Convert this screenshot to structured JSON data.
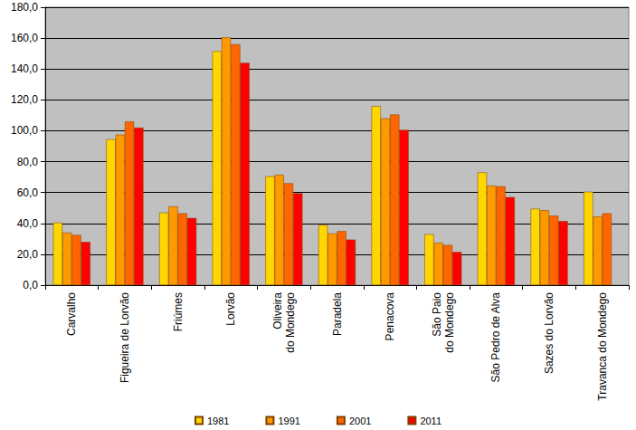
{
  "chart_data": {
    "type": "bar",
    "categories": [
      "Carvalho",
      "Figueira de Lorvão",
      "Friúmes",
      "Lorvão",
      "Oliveira\ndo Mondego",
      "Paradela",
      "Penacova",
      "São Paio\ndo Mondego",
      "São Pedro de Alva",
      "Sazes do Lorvão",
      "Travanca do Mondego"
    ],
    "series": [
      {
        "name": "1981",
        "color": "#ffd700",
        "values": [
          40.5,
          94.5,
          47,
          151.5,
          70.5,
          39,
          116,
          33,
          73,
          49.5,
          60.5
        ]
      },
      {
        "name": "1991",
        "color": "#ff9900",
        "values": [
          34,
          97.5,
          51,
          160.5,
          71.5,
          33.5,
          108,
          27.5,
          64.5,
          48.5,
          44.5
        ]
      },
      {
        "name": "2001",
        "color": "#ff6600",
        "values": [
          32.5,
          106,
          46.5,
          156,
          66,
          35,
          110.5,
          26,
          64,
          45,
          46.5
        ]
      },
      {
        "name": "2011",
        "color": "#ff0000",
        "values": [
          28,
          102,
          43.5,
          144,
          59.5,
          29.5,
          100.5,
          21.5,
          57,
          41.5,
          null
        ]
      }
    ],
    "ylim": [
      0,
      180
    ],
    "yticks": [
      {
        "value": 0,
        "label": "0,0"
      },
      {
        "value": 20,
        "label": "20,0"
      },
      {
        "value": 40,
        "label": "40,0"
      },
      {
        "value": 60,
        "label": "60,0"
      },
      {
        "value": 80,
        "label": "80,0"
      },
      {
        "value": 100,
        "label": "100,0"
      },
      {
        "value": 120,
        "label": "120,0"
      },
      {
        "value": 140,
        "label": "140,0"
      },
      {
        "value": 160,
        "label": "160,0"
      },
      {
        "value": 180,
        "label": "180,0"
      }
    ],
    "grid": true,
    "legend": "bottom"
  }
}
